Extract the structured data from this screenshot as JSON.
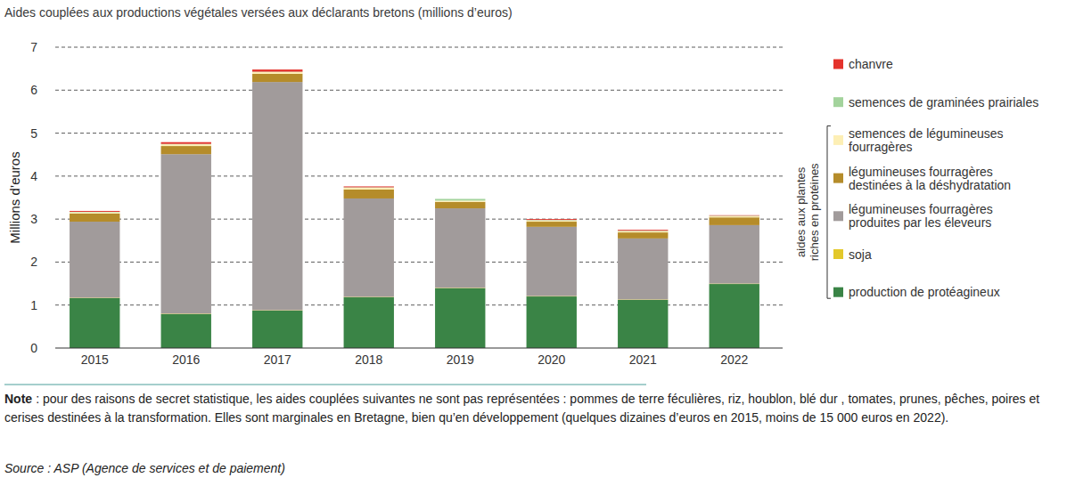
{
  "chart_data": {
    "type": "bar",
    "stacked": true,
    "title": "Aides couplées aux productions végétales versées aux déclarants bretons (millions d’euros)",
    "y_label": "Millions d’euros",
    "categories": [
      "2015",
      "2016",
      "2017",
      "2018",
      "2019",
      "2020",
      "2021",
      "2022"
    ],
    "series": [
      {
        "name": "production de protéagineux",
        "color": "#3a8446",
        "values": [
          1.16,
          0.79,
          0.87,
          1.18,
          1.39,
          1.2,
          1.12,
          1.49
        ]
      },
      {
        "name": "soja",
        "color": "#e3c82a",
        "values": [
          0.01,
          0.01,
          0.01,
          0.01,
          0.01,
          0.01,
          0.01,
          0.01
        ]
      },
      {
        "name": "légumineuses fourragères produites par les éleveurs",
        "color": "#a19b9b",
        "values": [
          1.77,
          3.71,
          5.31,
          2.29,
          1.85,
          1.61,
          1.42,
          1.36
        ]
      },
      {
        "name": "légumineuses fourragères destinées à la déshydratation",
        "color": "#b58c2a",
        "values": [
          0.19,
          0.19,
          0.19,
          0.21,
          0.15,
          0.12,
          0.14,
          0.18
        ]
      },
      {
        "name": "semences de légumineuses fourragères",
        "color": "#fdefb5",
        "values": [
          0.03,
          0.04,
          0.04,
          0.04,
          0.03,
          0.03,
          0.03,
          0.03
        ]
      },
      {
        "name": "semences de graminées prairiales",
        "color": "#a3d39c",
        "values": [
          0.01,
          0.01,
          0.01,
          0.01,
          0.04,
          0.01,
          0.01,
          0.01
        ]
      },
      {
        "name": "chanvre",
        "color": "#e4322b",
        "values": [
          0.02,
          0.04,
          0.05,
          0.02,
          0.0,
          0.02,
          0.02,
          0.01
        ]
      }
    ],
    "ylim": [
      0,
      7
    ],
    "yticks": [
      0,
      1,
      2,
      3,
      4,
      5,
      6,
      7
    ],
    "grid": true,
    "legend": "right",
    "annotations": [
      "aides aux plantes riches en protéines"
    ],
    "note": {
      "label": "Note",
      "text": ": pour des raisons de secret statistique, les aides couplées suivantes ne sont pas représentées : pommes de terre féculières, riz, houblon, blé dur , tomates, prunes, pêches, poires et cerises destinées à la transformation. Elles sont marginales en Bretagne, bien qu’en développement (quelques dizaines d’euros en 2015, moins de 15 000 euros en 2022)."
    },
    "source": "Source : ASP (Agence de services et de paiement)"
  }
}
